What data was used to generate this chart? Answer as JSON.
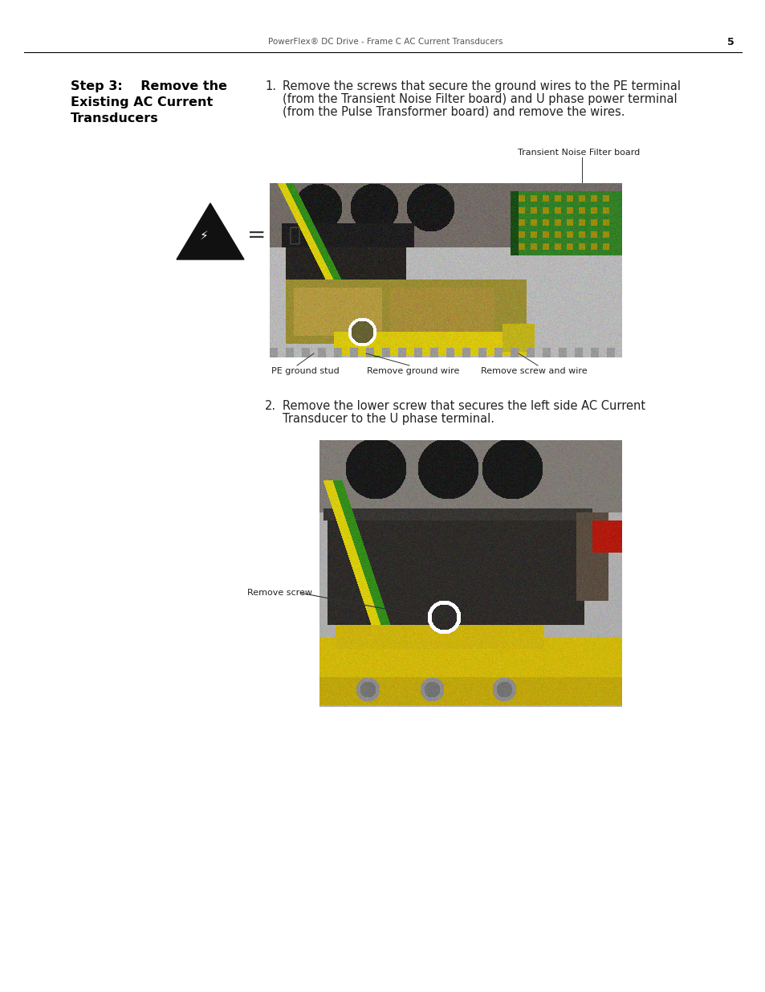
{
  "page_header_text": "PowerFlex® DC Drive - Frame C AC Current Transducers",
  "page_number": "5",
  "background_color": "#ffffff",
  "section_title_line1": "Step 3:    Remove the",
  "section_title_line2": "Existing AC Current",
  "section_title_line3": "Transducers",
  "step1_text": "1.   Remove the screws that secure the ground wires to the PE terminal\n     (from the Transient Noise Filter board) and U phase power terminal\n     (from the Pulse Transformer board) and remove the wires.",
  "step1_line1": "Remove the screws that secure the ground wires to the PE terminal",
  "step1_line2": "(from the Transient Noise Filter board) and U phase power terminal",
  "step1_line3": "(from the Pulse Transformer board) and remove the wires.",
  "step2_line1": "Remove the lower screw that secures the left side AC Current",
  "step2_line2": "Transducer to the U phase terminal.",
  "label_transient": "Transient Noise Filter board",
  "label_pe_ground": "PE ground stud",
  "label_remove_ground": "Remove ground wire",
  "label_remove_screw_wire": "Remove screw and wire",
  "label_remove_screw": "Remove screw",
  "text_color": "#222222",
  "title_color": "#000000",
  "header_color": "#555555"
}
